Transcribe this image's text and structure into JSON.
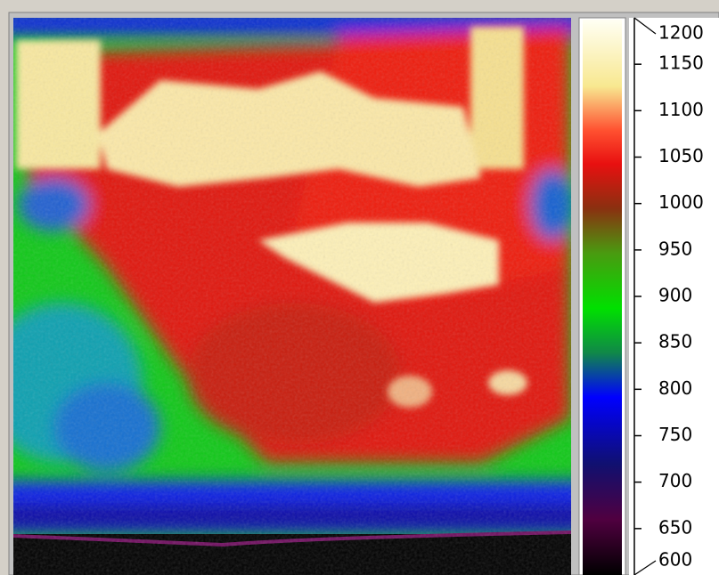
{
  "colorbar": {
    "lim": [
      600,
      1200
    ],
    "ticks": [
      600,
      650,
      700,
      750,
      800,
      850,
      900,
      950,
      1000,
      1050,
      1100,
      1150,
      1200
    ]
  }
}
